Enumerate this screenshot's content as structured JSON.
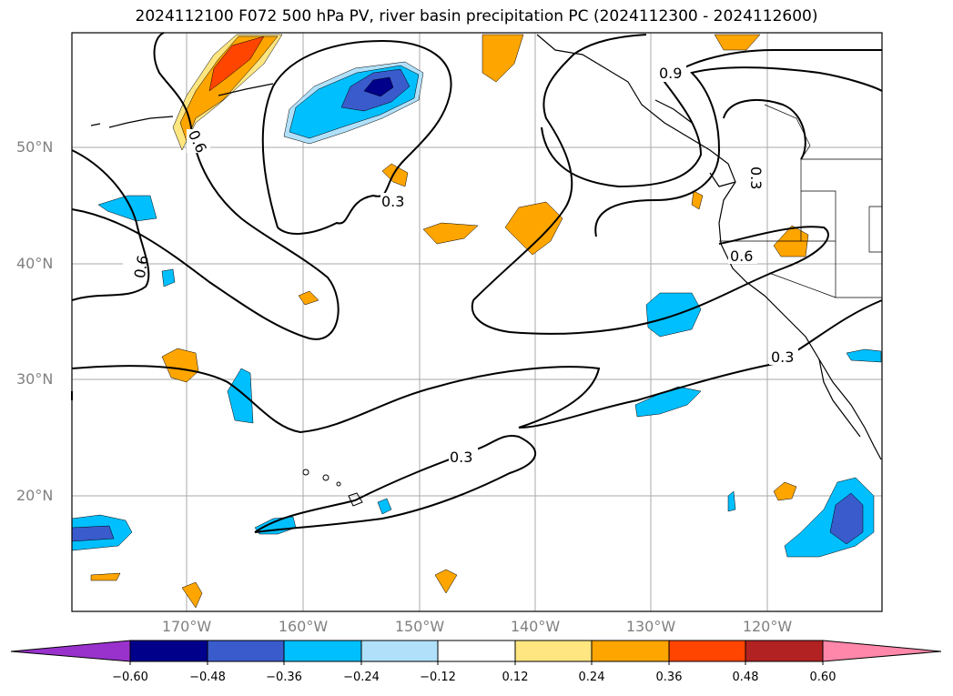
{
  "title": "2024112100 F072 500 hPa PV, river basin precipitation PC (2024112300 - 2024112600)",
  "map": {
    "lat_labels": [
      "50°N",
      "40°N",
      "30°N",
      "20°N"
    ],
    "lon_labels": [
      "170°W",
      "160°W",
      "150°W",
      "140°W",
      "130°W",
      "120°W"
    ],
    "contour_labels": [
      "0.3",
      "0.3",
      "0.3",
      "0.6",
      "0.6",
      "0.6",
      "0.9",
      "0.3"
    ],
    "grid": true,
    "land_fill": "#ffffff",
    "coastline_color": "#000000"
  },
  "colorbar": {
    "ticks": [
      "−0.60",
      "−0.48",
      "−0.36",
      "−0.24",
      "−0.12",
      "0.12",
      "0.24",
      "0.36",
      "0.48",
      "0.60"
    ],
    "colors": [
      "#9932cc",
      "#00008b",
      "#3a5bcc",
      "#00bfff",
      "#b0e0fa",
      "#ffffff",
      "#ffe680",
      "#ffa500",
      "#ff4500",
      "#b22222",
      "#ff88aa"
    ]
  }
}
